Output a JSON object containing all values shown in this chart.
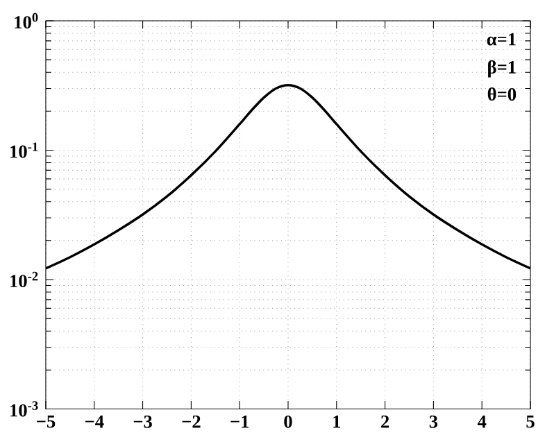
{
  "chart_data": {
    "type": "line",
    "log": "y",
    "grid": true,
    "line_style": "solid",
    "marker": "none",
    "x": [
      -5,
      -4.5,
      -4,
      -3.5,
      -3,
      -2.5,
      -2,
      -1.5,
      -1,
      -0.75,
      -0.5,
      -0.25,
      0,
      0.25,
      0.5,
      0.75,
      1,
      1.5,
      2,
      2.5,
      3,
      3.5,
      4,
      4.5,
      5
    ],
    "series": [
      {
        "color": "#000000",
        "values": [
          0.0122,
          0.0149,
          0.0187,
          0.0241,
          0.0318,
          0.0439,
          0.064,
          0.098,
          0.159,
          0.204,
          0.255,
          0.3,
          0.318,
          0.3,
          0.255,
          0.204,
          0.159,
          0.098,
          0.064,
          0.0439,
          0.0318,
          0.0241,
          0.0187,
          0.0149,
          0.0122
        ]
      }
    ],
    "xlim": [
      -5,
      5
    ],
    "xticks": [
      {
        "value": -5,
        "label": "−5"
      },
      {
        "value": -4,
        "label": "−4"
      },
      {
        "value": -3,
        "label": "−3"
      },
      {
        "value": -2,
        "label": "−2"
      },
      {
        "value": -1,
        "label": "−1"
      },
      0,
      1,
      2,
      3,
      4,
      5
    ],
    "ylim": [
      0.001,
      1
    ],
    "yticks": [
      {
        "value": 0.001,
        "label": "10$^{-3}$"
      },
      {
        "value": 0.01,
        "label": "10$^{-2}$"
      },
      {
        "value": 0.1,
        "label": "10$^{-1}$"
      },
      {
        "value": 1,
        "label": "10$^{0}$"
      }
    ],
    "annotations": [
      "α=1",
      "β=1",
      "θ=0"
    ]
  }
}
